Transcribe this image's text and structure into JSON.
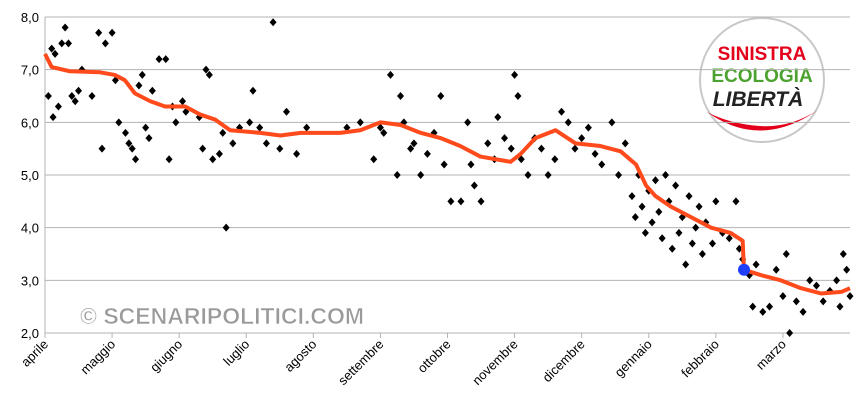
{
  "chart_data": {
    "type": "scatter",
    "xlim": [
      0,
      12
    ],
    "xticks": [
      {
        "value": 0,
        "label": "aprile"
      },
      {
        "value": 1,
        "label": "maggio"
      },
      {
        "value": 2,
        "label": "giugno"
      },
      {
        "value": 3,
        "label": "luglio"
      },
      {
        "value": 4,
        "label": "agosto"
      },
      {
        "value": 5,
        "label": "settembre"
      },
      {
        "value": 6,
        "label": "ottobre"
      },
      {
        "value": 7,
        "label": "novembre"
      },
      {
        "value": 8,
        "label": "dicembre"
      },
      {
        "value": 9,
        "label": "gennaio"
      },
      {
        "value": 10,
        "label": "febbraio"
      },
      {
        "value": 11,
        "label": "marzo"
      }
    ],
    "ylim": [
      2,
      8
    ],
    "yticks": [
      {
        "value": 2,
        "label": "2,0"
      },
      {
        "value": 3,
        "label": "3,0"
      },
      {
        "value": 4,
        "label": "4,0"
      },
      {
        "value": 5,
        "label": "5,0"
      },
      {
        "value": 6,
        "label": "6,0"
      },
      {
        "value": 7,
        "label": "7,0"
      },
      {
        "value": 8,
        "label": "8,0"
      }
    ],
    "grid": true,
    "series": [
      {
        "type": "scatter",
        "color": "#000000",
        "x": [
          0.05,
          0.1,
          0.15,
          0.2,
          0.25,
          0.3,
          0.35,
          0.4,
          0.45,
          0.5,
          0.55,
          0.7,
          0.8,
          0.85,
          0.9,
          1.0,
          1.05,
          0.12,
          1.1,
          1.2,
          1.25,
          1.3,
          1.35,
          1.4,
          1.45,
          1.5,
          1.55,
          1.6,
          1.7,
          1.8,
          1.85,
          1.9,
          1.95,
          2.05,
          2.1,
          2.3,
          2.35,
          2.4,
          2.45,
          2.5,
          2.6,
          2.65,
          2.7,
          2.8,
          2.9,
          3.05,
          3.1,
          3.2,
          3.3,
          3.4,
          3.5,
          3.6,
          3.75,
          3.9,
          4.5,
          4.7,
          4.9,
          5.0,
          5.05,
          5.15,
          5.25,
          5.3,
          5.35,
          5.45,
          5.5,
          5.6,
          5.7,
          5.8,
          5.9,
          5.95,
          6.05,
          6.2,
          6.3,
          6.35,
          6.4,
          6.5,
          6.6,
          6.7,
          6.75,
          6.85,
          6.95,
          7.0,
          7.05,
          7.1,
          7.2,
          7.3,
          7.4,
          7.5,
          7.6,
          7.7,
          7.8,
          7.9,
          8.0,
          8.1,
          8.2,
          8.3,
          8.45,
          8.55,
          8.65,
          8.75,
          8.8,
          8.85,
          8.9,
          8.95,
          9.0,
          9.05,
          9.1,
          9.15,
          9.2,
          9.25,
          9.3,
          9.35,
          9.4,
          9.45,
          9.5,
          9.55,
          9.6,
          9.65,
          9.7,
          9.75,
          9.8,
          9.85,
          9.95,
          10.0,
          10.1,
          10.2,
          10.3,
          10.35,
          10.4,
          10.5,
          10.55,
          10.6,
          10.7,
          10.8,
          10.9,
          11.0,
          11.05,
          11.1,
          11.2,
          11.3,
          11.4,
          11.5,
          11.6,
          11.7,
          11.8,
          11.85,
          11.9,
          11.95,
          12.0
        ],
        "values": [
          6.5,
          7.4,
          7.3,
          6.3,
          7.5,
          7.8,
          7.5,
          6.5,
          6.4,
          6.6,
          7.0,
          6.5,
          7.7,
          5.5,
          7.5,
          7.7,
          6.8,
          6.1,
          6.0,
          5.8,
          5.6,
          5.5,
          5.3,
          6.7,
          6.9,
          5.9,
          5.7,
          6.6,
          7.2,
          7.2,
          5.3,
          6.3,
          6.0,
          6.4,
          6.2,
          6.1,
          5.5,
          7.0,
          6.9,
          5.3,
          5.4,
          5.8,
          4.0,
          5.6,
          5.9,
          6.0,
          6.6,
          5.9,
          5.6,
          7.9,
          5.5,
          6.2,
          5.4,
          5.9,
          5.9,
          6.0,
          5.3,
          5.9,
          5.8,
          6.9,
          5.0,
          6.5,
          6.0,
          5.5,
          5.6,
          5.0,
          5.4,
          5.8,
          6.5,
          5.2,
          4.5,
          4.5,
          6.0,
          5.2,
          4.8,
          4.5,
          5.6,
          5.3,
          6.1,
          5.7,
          5.5,
          6.9,
          6.5,
          5.3,
          5.0,
          5.7,
          5.5,
          5.0,
          5.3,
          6.2,
          6.0,
          5.5,
          5.7,
          5.9,
          5.4,
          5.2,
          6.0,
          5.0,
          5.6,
          4.6,
          4.2,
          5.0,
          4.4,
          3.9,
          4.7,
          4.1,
          4.9,
          4.3,
          3.8,
          5.0,
          4.5,
          3.6,
          4.8,
          3.9,
          4.2,
          3.3,
          4.6,
          3.7,
          4.0,
          4.4,
          3.5,
          4.1,
          3.7,
          4.5,
          3.9,
          3.8,
          4.5,
          3.6,
          3.4,
          3.1,
          2.5,
          3.3,
          2.4,
          2.5,
          3.2,
          2.7,
          3.5,
          2.0,
          2.6,
          2.4,
          3.0,
          2.9,
          2.6,
          2.8,
          3.0,
          2.5,
          3.5,
          3.2,
          2.7
        ]
      },
      {
        "type": "line",
        "color": "#ff4a1c",
        "x": [
          0,
          0.1,
          0.37,
          0.82,
          1.04,
          1.19,
          1.34,
          1.57,
          1.79,
          2.09,
          2.31,
          2.54,
          2.76,
          3.21,
          3.51,
          3.81,
          4.4,
          4.7,
          5.0,
          5.3,
          5.6,
          5.9,
          6.19,
          6.49,
          6.94,
          7.09,
          7.31,
          7.61,
          7.91,
          8.28,
          8.58,
          8.81,
          8.96,
          9.1,
          9.33,
          9.63,
          9.93,
          10.22,
          10.4,
          10.42,
          10.67,
          10.97,
          11.27,
          11.57,
          11.87,
          12.0
        ],
        "values": [
          7.3,
          7.05,
          6.97,
          6.95,
          6.9,
          6.8,
          6.55,
          6.4,
          6.3,
          6.3,
          6.15,
          6.05,
          5.85,
          5.8,
          5.75,
          5.8,
          5.8,
          5.85,
          6.0,
          5.95,
          5.8,
          5.7,
          5.55,
          5.35,
          5.25,
          5.4,
          5.7,
          5.85,
          5.6,
          5.55,
          5.45,
          5.2,
          4.8,
          4.6,
          4.4,
          4.2,
          4.0,
          3.9,
          3.75,
          3.2,
          3.1,
          3.0,
          2.85,
          2.75,
          2.78,
          2.85
        ]
      },
      {
        "type": "dot",
        "color": "#1f3fff",
        "x": [
          10.42
        ],
        "values": [
          3.2
        ]
      }
    ]
  },
  "logo": {
    "lines": [
      "SINISTRA",
      "ECOLOGIA",
      "LIBERTÀ"
    ]
  },
  "watermark": "© SCENARIPOLITICI.COM"
}
